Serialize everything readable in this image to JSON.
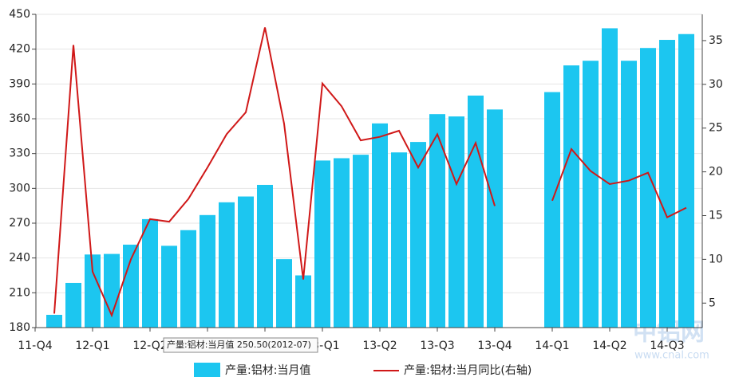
{
  "chart_data": {
    "type": "bar",
    "categories": [
      "11-Q4",
      null,
      null,
      "12-Q1",
      null,
      null,
      "12-Q2",
      null,
      null,
      "12-Q3",
      null,
      null,
      "12-Q4",
      null,
      null,
      "13-Q1",
      null,
      null,
      "13-Q2",
      null,
      null,
      "13-Q3",
      null,
      null,
      "13-Q4",
      null,
      null,
      "14-Q1",
      null,
      null,
      "14-Q2",
      null,
      null,
      "14-Q3",
      null
    ],
    "series": [
      {
        "name": "产量:铝材:当月值",
        "type": "bar",
        "color": "#1cc6f0",
        "values": [
          null,
          191,
          218.5,
          243,
          243.5,
          251.5,
          273.5,
          250.5,
          264,
          277,
          288,
          293,
          303,
          239,
          225,
          324,
          326,
          329,
          356,
          331,
          340,
          364,
          362,
          380,
          368,
          null,
          null,
          383,
          406,
          410,
          438,
          410,
          421,
          428,
          433
        ]
      },
      {
        "name": "产量:铝材:当月同比(右轴)",
        "type": "line",
        "axis": "y2",
        "color": "#d01818",
        "values": [
          null,
          3.8,
          34.5,
          8.6,
          3.6,
          10.0,
          14.6,
          14.3,
          16.9,
          20.5,
          24.3,
          26.8,
          36.5,
          25.5,
          7.7,
          30.1,
          27.5,
          23.6,
          24.0,
          24.7,
          20.5,
          24.3,
          18.6,
          23.3,
          16.1,
          null,
          null,
          16.7,
          22.6,
          20.1,
          18.6,
          19.0,
          19.9,
          14.8,
          15.9
        ]
      }
    ],
    "ylim": [
      180,
      450
    ],
    "yticks": [
      180,
      210,
      240,
      270,
      300,
      330,
      360,
      390,
      420,
      450
    ],
    "y2lim": [
      2.2,
      38
    ],
    "y2ticks": [
      5,
      10,
      15,
      20,
      25,
      30,
      35
    ],
    "grid": true,
    "annotations": [
      "产量:铝材:当月值 250.50(2012-07)"
    ],
    "watermark": [
      "中铝网",
      "www.cnal.com"
    ]
  }
}
